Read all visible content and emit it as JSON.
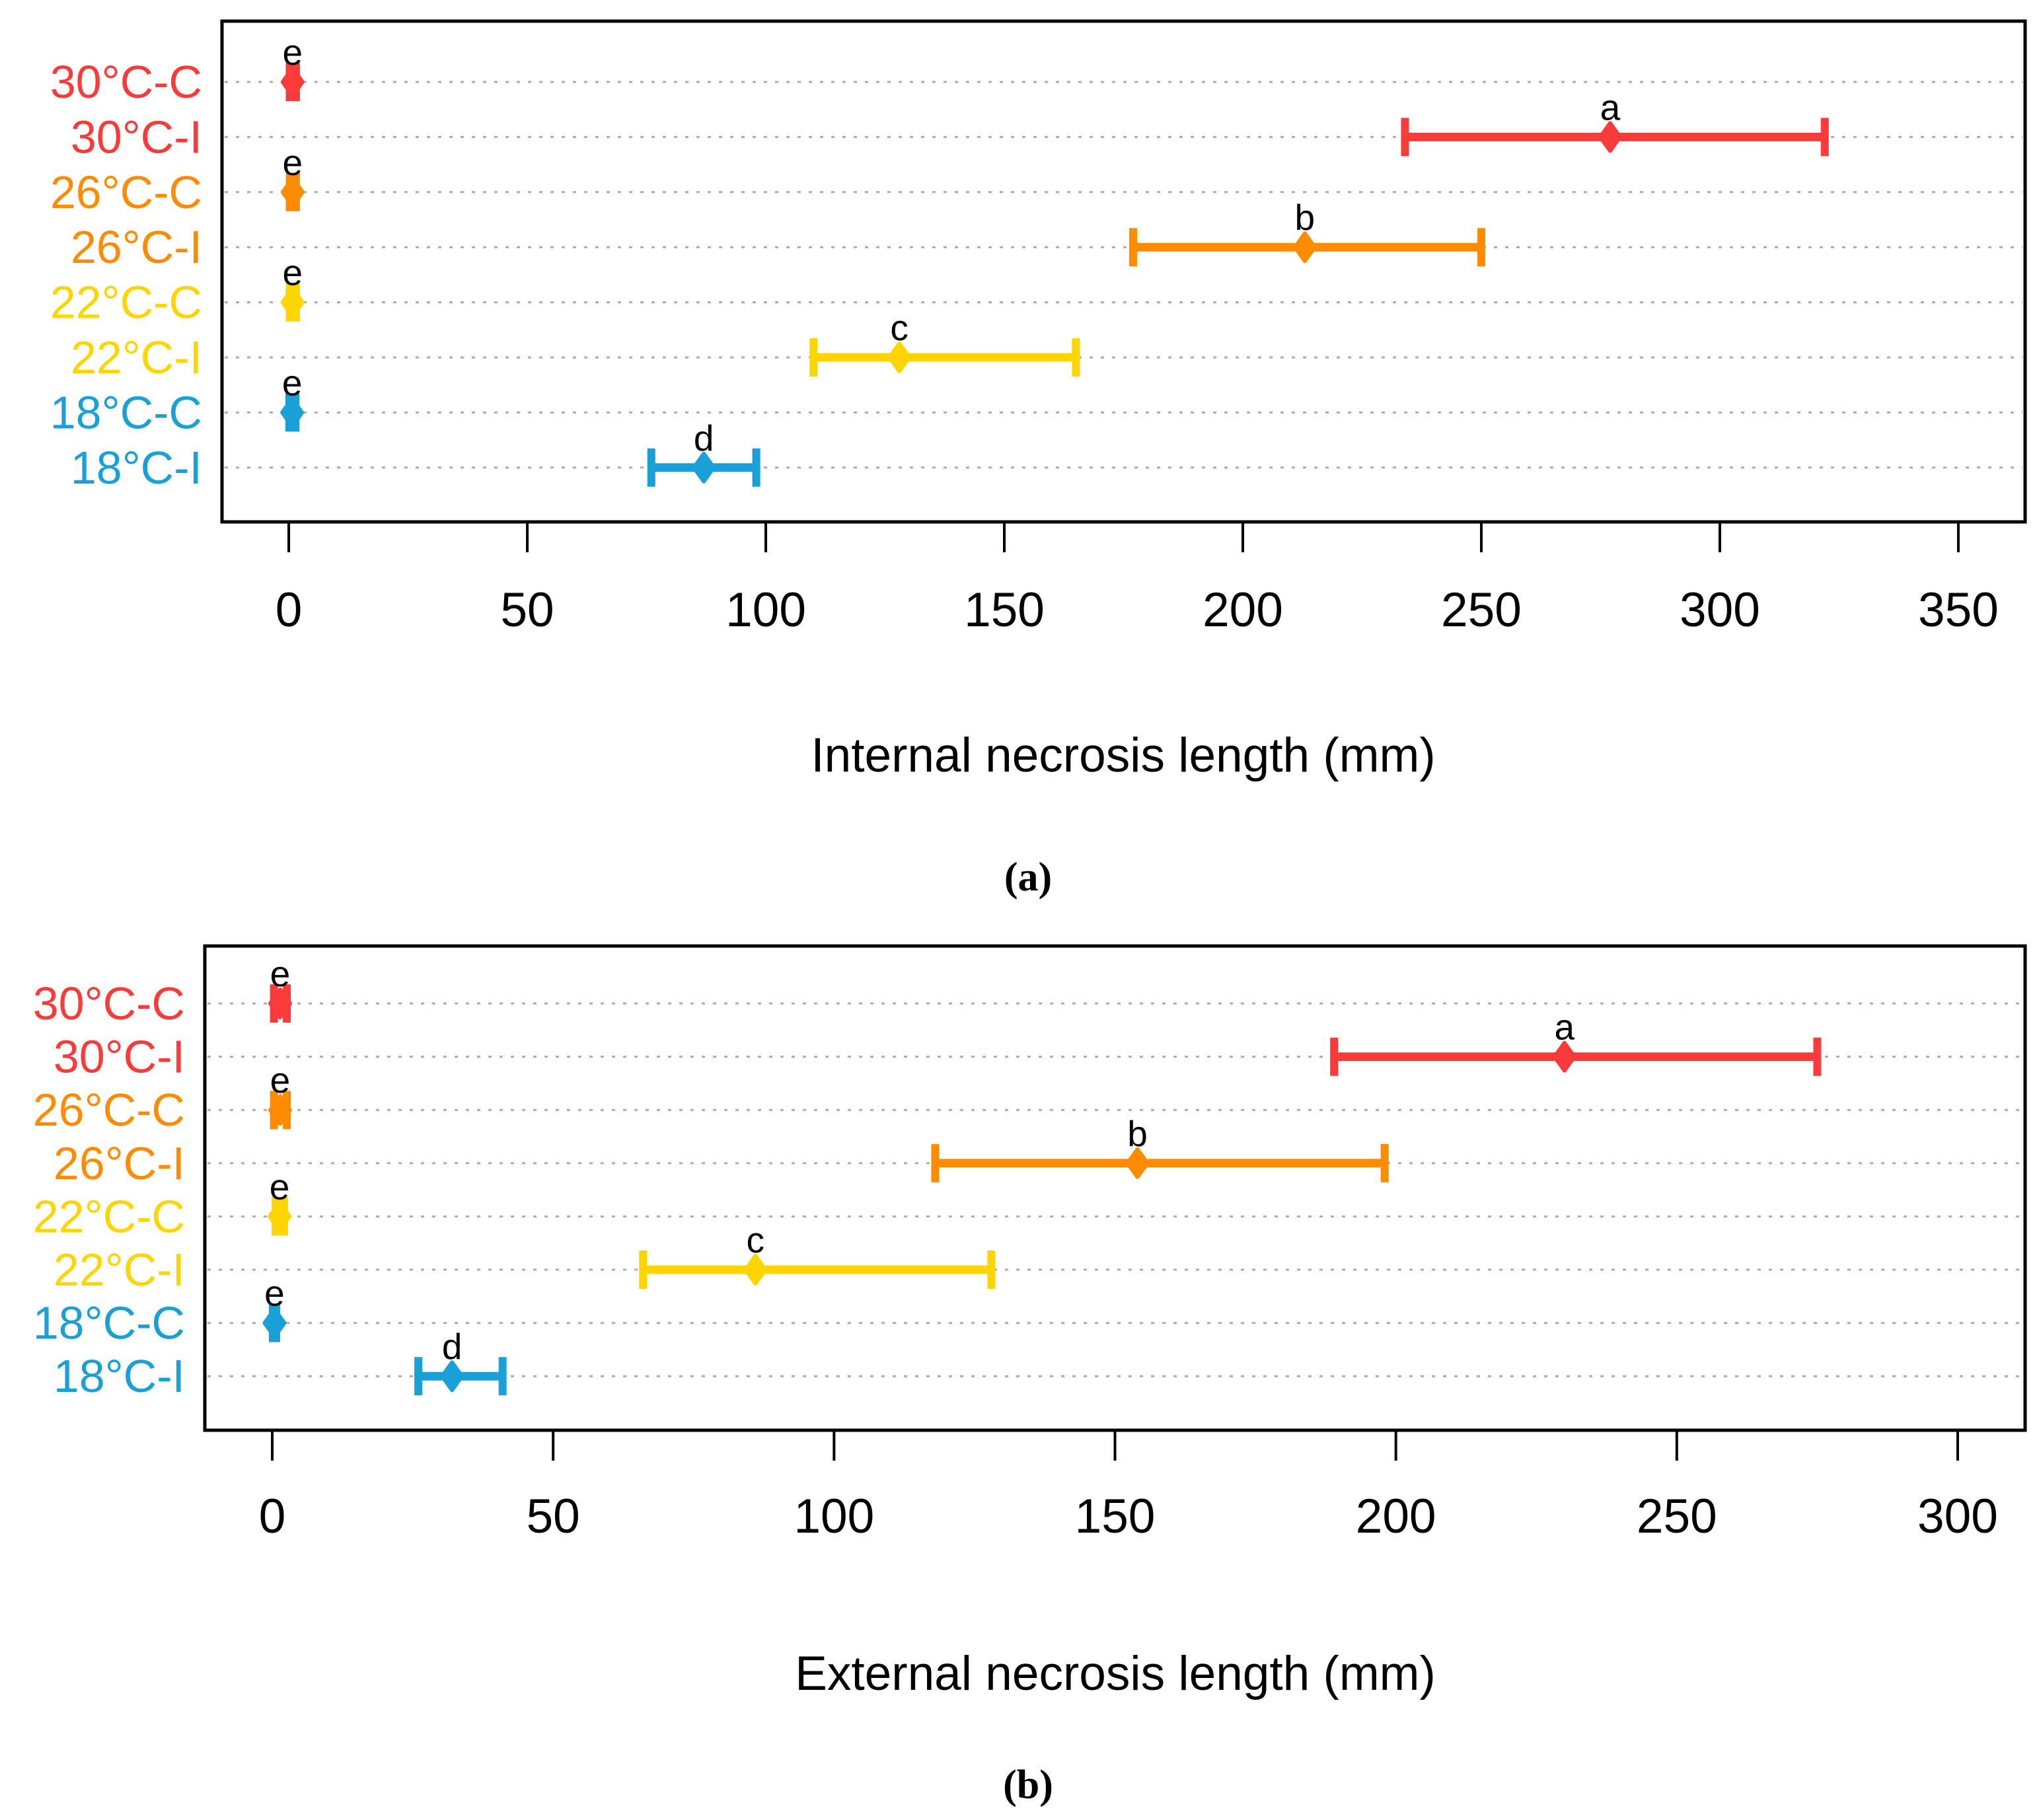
{
  "figure": {
    "description": "Two-panel dot plot with horizontal error bars of necrosis length by temperature treatment",
    "background_color": "#ffffff",
    "border_color": "#000000",
    "gridline_color": "#ababab",
    "text_color": "#000000"
  },
  "chart_data": [
    {
      "type": "scatter",
      "subtype": "horizontal-error-bar-dot-plot",
      "panel_label": "(a)",
      "xlabel": "Internal necrosis length (mm)",
      "xlim": [
        0,
        350
      ],
      "x_ticks": [
        0,
        50,
        100,
        150,
        200,
        250,
        300,
        350
      ],
      "grid": "horizontal dotted gridline per category row",
      "legend_position": "none",
      "categories": [
        "30°C-C",
        "30°C-I",
        "26°C-C",
        "26°C-I",
        "22°C-C",
        "22°C-I",
        "18°C-C",
        "18°C-I"
      ],
      "series": [
        {
          "category": "30°C-C",
          "color": "#fb3a3a",
          "mean": 0.8,
          "ci_low": 0.2,
          "ci_high": 1.5,
          "sig_letter": "e"
        },
        {
          "category": "30°C-I",
          "color": "#fb3a3a",
          "mean": 277,
          "ci_low": 234,
          "ci_high": 322,
          "sig_letter": "a"
        },
        {
          "category": "26°C-C",
          "color": "#ff8c00",
          "mean": 0.8,
          "ci_low": 0.2,
          "ci_high": 1.5,
          "sig_letter": "e"
        },
        {
          "category": "26°C-I",
          "color": "#ff8c00",
          "mean": 213,
          "ci_low": 177,
          "ci_high": 250,
          "sig_letter": "b"
        },
        {
          "category": "22°C-C",
          "color": "#ffd500",
          "mean": 0.8,
          "ci_low": 0.2,
          "ci_high": 1.5,
          "sig_letter": "e"
        },
        {
          "category": "22°C-I",
          "color": "#ffd500",
          "mean": 128,
          "ci_low": 110,
          "ci_high": 165,
          "sig_letter": "c"
        },
        {
          "category": "18°C-C",
          "color": "#18a0d7",
          "mean": 0.7,
          "ci_low": 0.1,
          "ci_high": 1.4,
          "sig_letter": "e"
        },
        {
          "category": "18°C-I",
          "color": "#18a0d7",
          "mean": 87,
          "ci_low": 76,
          "ci_high": 98,
          "sig_letter": "d"
        }
      ]
    },
    {
      "type": "scatter",
      "subtype": "horizontal-error-bar-dot-plot",
      "panel_label": "(b)",
      "xlabel": "External necrosis length (mm)",
      "xlim": [
        0,
        300
      ],
      "x_ticks": [
        0,
        50,
        100,
        150,
        200,
        250,
        300
      ],
      "grid": "horizontal dotted gridline per category row",
      "legend_position": "none",
      "categories": [
        "30°C-C",
        "30°C-I",
        "26°C-C",
        "26°C-I",
        "22°C-C",
        "22°C-I",
        "18°C-C",
        "18°C-I"
      ],
      "series": [
        {
          "category": "30°C-C",
          "color": "#fb3a3a",
          "mean": 1.4,
          "ci_low": 0.3,
          "ci_high": 2.6,
          "sig_letter": "e"
        },
        {
          "category": "30°C-I",
          "color": "#fb3a3a",
          "mean": 230,
          "ci_low": 189,
          "ci_high": 275,
          "sig_letter": "a"
        },
        {
          "category": "26°C-C",
          "color": "#ff8c00",
          "mean": 1.4,
          "ci_low": 0.3,
          "ci_high": 2.6,
          "sig_letter": "e"
        },
        {
          "category": "26°C-I",
          "color": "#ff8c00",
          "mean": 154,
          "ci_low": 118,
          "ci_high": 198,
          "sig_letter": "b"
        },
        {
          "category": "22°C-C",
          "color": "#ffd500",
          "mean": 1.3,
          "ci_low": 0.6,
          "ci_high": 2.1,
          "sig_letter": "e"
        },
        {
          "category": "22°C-I",
          "color": "#ffd500",
          "mean": 86,
          "ci_low": 66,
          "ci_high": 128,
          "sig_letter": "c"
        },
        {
          "category": "18°C-C",
          "color": "#18a0d7",
          "mean": 0.4,
          "ci_low": 0.1,
          "ci_high": 0.7,
          "sig_letter": "e"
        },
        {
          "category": "18°C-I",
          "color": "#18a0d7",
          "mean": 32,
          "ci_low": 26,
          "ci_high": 41,
          "sig_letter": "d"
        }
      ]
    }
  ]
}
